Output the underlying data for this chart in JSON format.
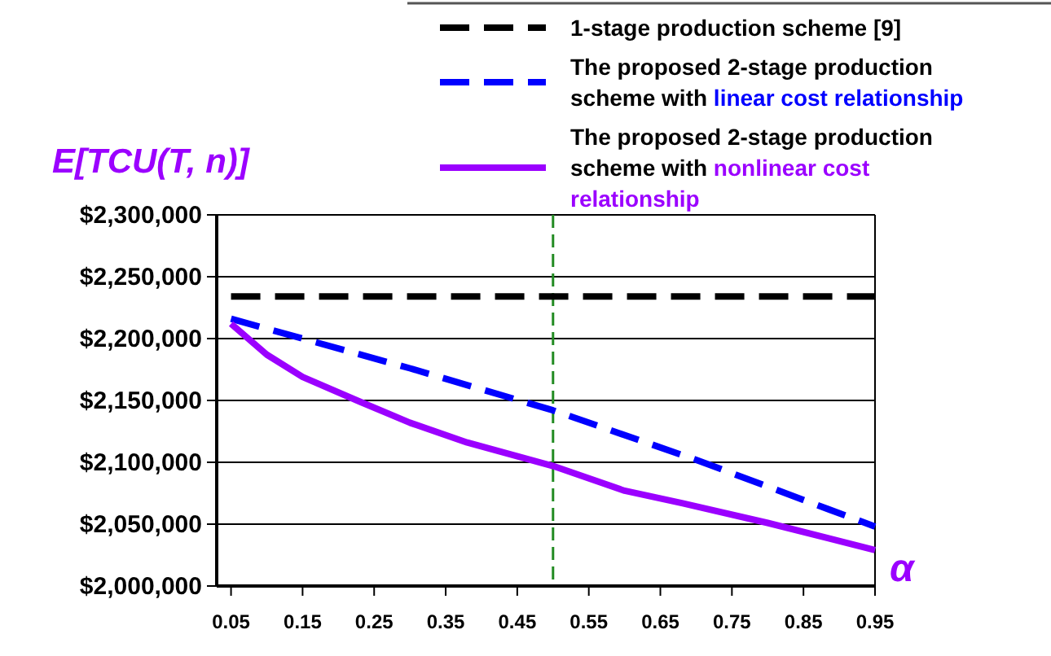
{
  "chart_data": {
    "type": "line",
    "xlabel": "α",
    "ylabel": "E[TCU(T, n)]",
    "xlim": [
      0.03,
      0.95
    ],
    "xticks": [
      0.05,
      0.15,
      0.25,
      0.35,
      0.45,
      0.55,
      0.65,
      0.75,
      0.85,
      0.95
    ],
    "ylim": [
      2000000,
      2300000
    ],
    "yticks": [
      {
        "value": 2000000,
        "label": "$2,000,000"
      },
      {
        "value": 2050000,
        "label": "$2,050,000"
      },
      {
        "value": 2100000,
        "label": "$2,100,000"
      },
      {
        "value": 2150000,
        "label": "$2,150,000"
      },
      {
        "value": 2200000,
        "label": "$2,200,000"
      },
      {
        "value": 2250000,
        "label": "$2,250,000"
      },
      {
        "value": 2300000,
        "label": "$2,300,000"
      }
    ],
    "grid": "y",
    "legend": "top right",
    "marker": "none",
    "ref_lines": [
      {
        "axis": "x",
        "value": 0.5,
        "color": "#228b22",
        "line_style": "dashed"
      }
    ],
    "series": [
      {
        "name": "1-stage production scheme [9]",
        "color": "#000000",
        "line_style": "dashed",
        "x": [
          0.05,
          0.95
        ],
        "values": [
          2234000,
          2234000
        ]
      },
      {
        "name": "The proposed 2-stage production scheme with linear cost relationship",
        "color": "#0000ff",
        "line_style": "dashed",
        "x": [
          0.05,
          0.3,
          0.5,
          0.7,
          0.95
        ],
        "values": [
          2216000,
          2176000,
          2142000,
          2102000,
          2048000
        ]
      },
      {
        "name": "The proposed 2-stage production scheme with nonlinear cost relationship",
        "color": "#9b00ff",
        "line_style": "solid",
        "x": [
          0.05,
          0.1,
          0.15,
          0.23,
          0.3,
          0.38,
          0.5,
          0.6,
          0.68,
          0.8,
          0.95
        ],
        "values": [
          2212000,
          2187000,
          2169000,
          2149000,
          2132000,
          2116000,
          2097000,
          2077000,
          2067000,
          2051000,
          2029000
        ]
      }
    ]
  }
}
